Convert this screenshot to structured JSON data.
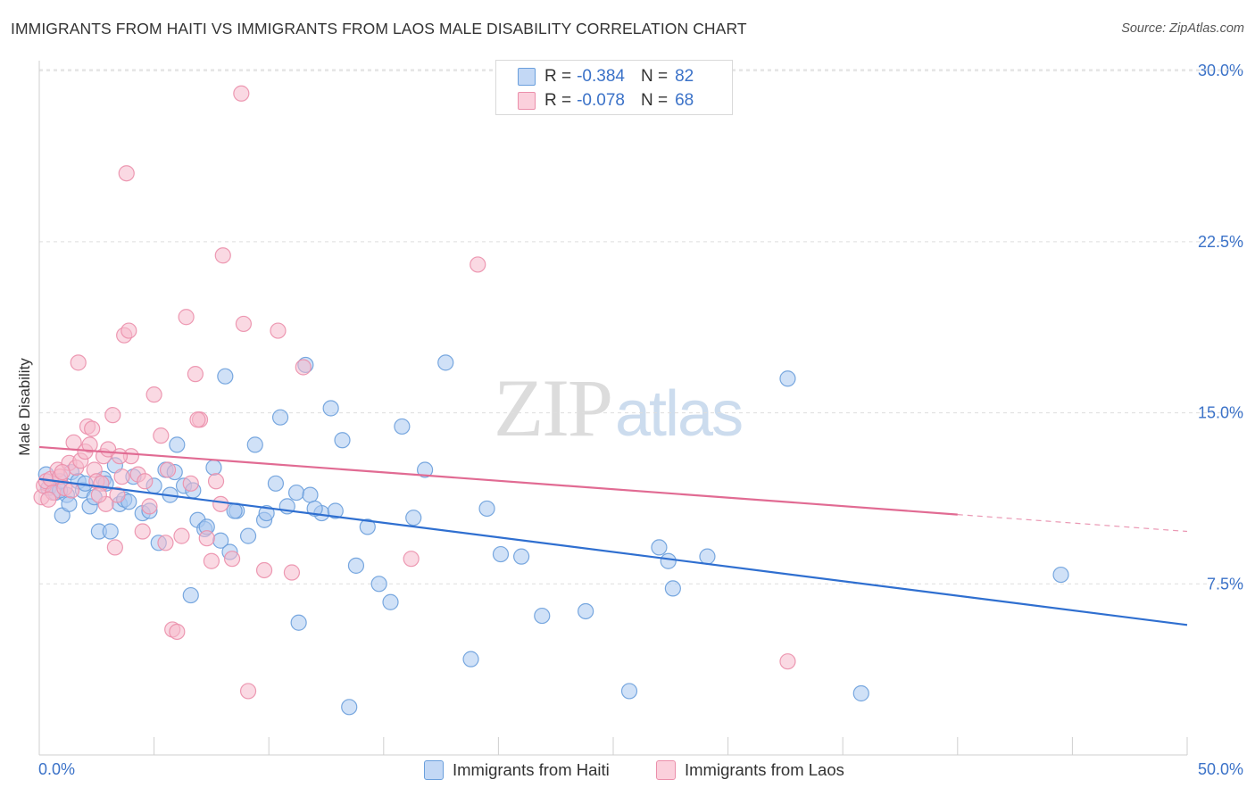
{
  "header": {
    "title": "IMMIGRANTS FROM HAITI VS IMMIGRANTS FROM LAOS MALE DISABILITY CORRELATION CHART",
    "source": "Source: ZipAtlas.com"
  },
  "watermark": {
    "part1": "ZIP",
    "part2": "atlas"
  },
  "legend_top": {
    "rows": [
      {
        "r_label": "R =",
        "r_value": "-0.384",
        "n_label": "N =",
        "n_value": "82"
      },
      {
        "r_label": "R =",
        "r_value": "-0.078",
        "n_label": "N =",
        "n_value": "68"
      }
    ]
  },
  "legend_bottom": {
    "haiti_label": "Immigrants from Haiti",
    "laos_label": "Immigrants from Laos"
  },
  "x_tick_labels": {
    "min": "0.0%",
    "max": "50.0%"
  },
  "colors": {
    "haiti_fill": "#a9c8f0",
    "haiti_stroke": "#6a9fdc",
    "haiti_line": "#2f6fd0",
    "laos_fill": "#f6b9cc",
    "laos_stroke": "#eb8fab",
    "laos_line": "#e16b93",
    "tick_label": "#3b72c8",
    "grid": "#dedede"
  },
  "chart_data": {
    "type": "scatter",
    "title": "IMMIGRANTS FROM HAITI VS IMMIGRANTS FROM LAOS MALE DISABILITY CORRELATION CHART",
    "xlabel": "",
    "ylabel": "Male Disability",
    "xlim": [
      0,
      50
    ],
    "ylim": [
      0,
      31.5
    ],
    "y_ticks": [
      7.5,
      15.0,
      22.5,
      30.0
    ],
    "y_tick_labels": [
      "7.5%",
      "15.0%",
      "22.5%",
      "30.0%"
    ],
    "x_tick_labels": [
      "0.0%",
      "50.0%"
    ],
    "grid": true,
    "legend_position": "top-center",
    "series": [
      {
        "name": "Immigrants from Haiti",
        "R": -0.384,
        "N": 82,
        "trend": {
          "x": [
            0,
            50
          ],
          "y": [
            12.1,
            5.7
          ],
          "dashed_from": null
        },
        "points": [
          [
            0.3,
            12.3
          ],
          [
            0.4,
            11.7
          ],
          [
            0.7,
            11.5
          ],
          [
            0.9,
            12.0
          ],
          [
            1.0,
            10.5
          ],
          [
            1.2,
            11.4
          ],
          [
            1.4,
            12.4
          ],
          [
            1.7,
            12.0
          ],
          [
            1.9,
            11.6
          ],
          [
            2.2,
            10.9
          ],
          [
            2.4,
            11.3
          ],
          [
            2.6,
            9.8
          ],
          [
            2.8,
            12.1
          ],
          [
            3.1,
            9.8
          ],
          [
            3.3,
            12.7
          ],
          [
            3.5,
            11.0
          ],
          [
            3.7,
            11.2
          ],
          [
            4.1,
            12.2
          ],
          [
            4.5,
            10.6
          ],
          [
            5.0,
            11.8
          ],
          [
            5.2,
            9.3
          ],
          [
            5.5,
            12.5
          ],
          [
            5.7,
            11.4
          ],
          [
            6.0,
            13.6
          ],
          [
            6.3,
            11.8
          ],
          [
            6.6,
            7.0
          ],
          [
            6.9,
            10.3
          ],
          [
            7.2,
            9.9
          ],
          [
            7.6,
            12.6
          ],
          [
            7.9,
            9.4
          ],
          [
            8.3,
            8.9
          ],
          [
            8.6,
            10.7
          ],
          [
            9.1,
            9.6
          ],
          [
            9.4,
            13.6
          ],
          [
            9.8,
            10.3
          ],
          [
            10.3,
            11.9
          ],
          [
            10.8,
            10.9
          ],
          [
            11.2,
            11.5
          ],
          [
            11.8,
            11.4
          ],
          [
            12.3,
            10.6
          ],
          [
            12.7,
            15.2
          ],
          [
            13.2,
            13.8
          ],
          [
            13.8,
            8.3
          ],
          [
            14.3,
            10.0
          ],
          [
            14.8,
            7.5
          ],
          [
            15.3,
            6.7
          ],
          [
            15.8,
            14.4
          ],
          [
            16.3,
            10.4
          ],
          [
            16.8,
            12.5
          ],
          [
            17.7,
            17.2
          ],
          [
            18.8,
            4.2
          ],
          [
            19.5,
            10.8
          ],
          [
            20.1,
            8.8
          ],
          [
            21.9,
            6.1
          ],
          [
            23.8,
            6.3
          ],
          [
            25.7,
            2.8
          ],
          [
            27.0,
            9.1
          ],
          [
            27.6,
            7.3
          ],
          [
            29.1,
            8.7
          ],
          [
            32.6,
            16.5
          ],
          [
            35.8,
            2.7
          ],
          [
            44.5,
            7.9
          ],
          [
            4.8,
            10.7
          ],
          [
            6.7,
            11.6
          ],
          [
            8.1,
            16.6
          ],
          [
            10.5,
            14.8
          ],
          [
            11.6,
            17.1
          ],
          [
            12.0,
            10.8
          ],
          [
            13.5,
            2.1
          ],
          [
            12.9,
            10.7
          ],
          [
            21.0,
            8.7
          ],
          [
            27.4,
            8.5
          ],
          [
            1.3,
            11.0
          ],
          [
            2.0,
            11.9
          ],
          [
            3.9,
            11.1
          ],
          [
            5.9,
            12.4
          ],
          [
            7.3,
            10.0
          ],
          [
            8.5,
            10.7
          ],
          [
            9.9,
            10.6
          ],
          [
            11.3,
            5.8
          ],
          [
            0.9,
            11.6
          ],
          [
            2.9,
            11.9
          ]
        ]
      },
      {
        "name": "Immigrants from Laos",
        "R": -0.078,
        "N": 68,
        "trend": {
          "x": [
            0,
            50
          ],
          "y": [
            13.5,
            9.8
          ],
          "dashed_from": 40
        },
        "points": [
          [
            0.1,
            11.3
          ],
          [
            0.2,
            11.8
          ],
          [
            0.3,
            12.0
          ],
          [
            0.5,
            12.1
          ],
          [
            0.6,
            11.5
          ],
          [
            0.8,
            12.5
          ],
          [
            0.9,
            12.2
          ],
          [
            1.1,
            11.7
          ],
          [
            1.3,
            12.8
          ],
          [
            1.5,
            13.7
          ],
          [
            1.6,
            12.6
          ],
          [
            1.8,
            12.9
          ],
          [
            2.0,
            13.3
          ],
          [
            2.1,
            14.4
          ],
          [
            2.2,
            13.6
          ],
          [
            2.4,
            12.5
          ],
          [
            2.5,
            12.0
          ],
          [
            2.7,
            11.9
          ],
          [
            2.8,
            13.1
          ],
          [
            2.9,
            11.0
          ],
          [
            3.0,
            13.4
          ],
          [
            3.2,
            14.9
          ],
          [
            3.3,
            9.1
          ],
          [
            3.4,
            11.4
          ],
          [
            3.6,
            12.2
          ],
          [
            3.7,
            18.4
          ],
          [
            3.9,
            18.6
          ],
          [
            4.0,
            13.1
          ],
          [
            4.3,
            12.3
          ],
          [
            4.5,
            9.8
          ],
          [
            4.8,
            10.9
          ],
          [
            5.0,
            15.8
          ],
          [
            5.3,
            14.0
          ],
          [
            5.5,
            9.3
          ],
          [
            5.8,
            5.5
          ],
          [
            6.0,
            5.4
          ],
          [
            6.2,
            9.6
          ],
          [
            6.4,
            19.2
          ],
          [
            6.8,
            16.7
          ],
          [
            7.0,
            14.7
          ],
          [
            7.3,
            9.5
          ],
          [
            7.5,
            8.5
          ],
          [
            7.7,
            12.0
          ],
          [
            8.0,
            21.9
          ],
          [
            8.4,
            8.6
          ],
          [
            8.8,
            29.0
          ],
          [
            9.1,
            2.8
          ],
          [
            9.8,
            8.1
          ],
          [
            10.4,
            18.6
          ],
          [
            11.0,
            8.0
          ],
          [
            11.5,
            17.0
          ],
          [
            19.1,
            21.5
          ],
          [
            16.2,
            8.6
          ],
          [
            32.6,
            4.1
          ],
          [
            3.8,
            25.5
          ],
          [
            1.7,
            17.2
          ],
          [
            2.3,
            14.3
          ],
          [
            6.6,
            11.9
          ],
          [
            4.6,
            12.0
          ],
          [
            5.6,
            12.5
          ],
          [
            7.9,
            11.0
          ],
          [
            8.9,
            18.9
          ],
          [
            0.4,
            11.2
          ],
          [
            1.0,
            12.4
          ],
          [
            1.4,
            11.6
          ],
          [
            2.6,
            11.4
          ],
          [
            3.5,
            13.1
          ],
          [
            6.9,
            14.7
          ]
        ]
      }
    ]
  }
}
